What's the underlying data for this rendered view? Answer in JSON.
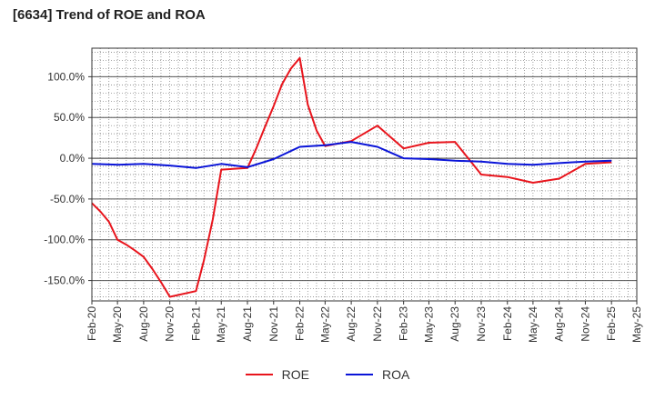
{
  "chart_data": {
    "type": "line",
    "title": "[6634]  Trend of ROE and ROA",
    "xlabel": "",
    "ylabel": "",
    "ylim": [
      -175,
      135
    ],
    "y_ticks": [
      100,
      50,
      0,
      -50,
      -100,
      -150
    ],
    "y_tick_labels": [
      "100.0%",
      "50.0%",
      "0.0%",
      "-50.0%",
      "-100.0%",
      "-150.0%"
    ],
    "x_ticks": [
      "2020-02",
      "2020-05",
      "2020-08",
      "2020-11",
      "2021-02",
      "2021-05",
      "2021-08",
      "2021-11",
      "2022-02",
      "2022-05",
      "2022-08",
      "2022-11",
      "2023-02",
      "2023-05",
      "2023-08",
      "2023-11",
      "2024-02",
      "2024-05",
      "2024-08",
      "2024-11",
      "2025-02",
      "2025-05"
    ],
    "x_tick_labels": [
      "Feb-20",
      "May-20",
      "Aug-20",
      "Nov-20",
      "Feb-21",
      "May-21",
      "Aug-21",
      "Nov-21",
      "Feb-22",
      "May-22",
      "Aug-22",
      "Nov-22",
      "Feb-23",
      "May-23",
      "Aug-23",
      "Nov-23",
      "Feb-24",
      "May-24",
      "Aug-24",
      "Nov-24",
      "Feb-25",
      "May-25"
    ],
    "grid": true,
    "legend_position": "bottom",
    "series": [
      {
        "name": "ROE",
        "color": "#e8141c",
        "points": [
          [
            "2020-02",
            -55
          ],
          [
            "2020-03",
            -65
          ],
          [
            "2020-04",
            -78
          ],
          [
            "2020-05",
            -100
          ],
          [
            "2020-06",
            -106
          ],
          [
            "2020-07",
            -113
          ],
          [
            "2020-08",
            -121
          ],
          [
            "2020-09",
            -136
          ],
          [
            "2020-10",
            -152
          ],
          [
            "2020-11",
            -170
          ],
          [
            "2021-02",
            -163
          ],
          [
            "2021-03",
            -125
          ],
          [
            "2021-04",
            -75
          ],
          [
            "2021-05",
            -14
          ],
          [
            "2021-08",
            -12
          ],
          [
            "2021-09",
            12
          ],
          [
            "2021-10",
            38
          ],
          [
            "2021-11",
            64
          ],
          [
            "2021-12",
            91
          ],
          [
            "2022-01",
            110
          ],
          [
            "2022-02",
            123
          ],
          [
            "2022-03",
            66
          ],
          [
            "2022-04",
            34
          ],
          [
            "2022-05",
            15
          ],
          [
            "2022-08",
            21
          ],
          [
            "2022-11",
            40
          ],
          [
            "2023-02",
            12
          ],
          [
            "2023-05",
            19
          ],
          [
            "2023-08",
            20
          ],
          [
            "2023-11",
            -20
          ],
          [
            "2024-02",
            -23
          ],
          [
            "2024-05",
            -30
          ],
          [
            "2024-08",
            -25
          ],
          [
            "2024-11",
            -7
          ],
          [
            "2025-02",
            -5
          ]
        ]
      },
      {
        "name": "ROA",
        "color": "#0a14d8",
        "points": [
          [
            "2020-02",
            -7
          ],
          [
            "2020-05",
            -8
          ],
          [
            "2020-08",
            -7
          ],
          [
            "2020-11",
            -9
          ],
          [
            "2021-02",
            -12
          ],
          [
            "2021-05",
            -7
          ],
          [
            "2021-08",
            -11
          ],
          [
            "2021-11",
            -1
          ],
          [
            "2022-02",
            14
          ],
          [
            "2022-05",
            16
          ],
          [
            "2022-08",
            20
          ],
          [
            "2022-11",
            14
          ],
          [
            "2023-02",
            0
          ],
          [
            "2023-05",
            -1
          ],
          [
            "2023-08",
            -3
          ],
          [
            "2023-11",
            -4
          ],
          [
            "2024-02",
            -7
          ],
          [
            "2024-05",
            -8
          ],
          [
            "2024-08",
            -6
          ],
          [
            "2024-11",
            -4
          ],
          [
            "2025-02",
            -3
          ]
        ]
      }
    ]
  }
}
